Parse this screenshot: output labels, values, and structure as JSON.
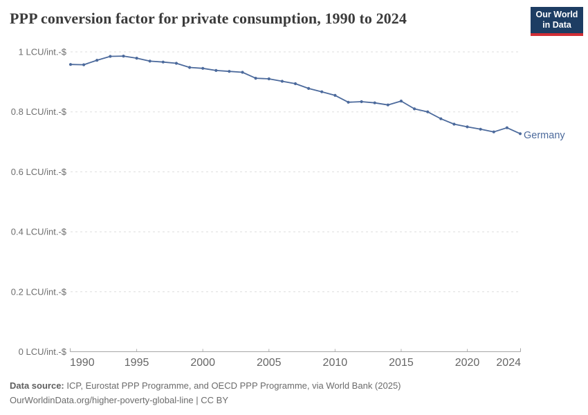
{
  "header": {
    "title": "PPP conversion factor for private consumption, 1990 to 2024"
  },
  "logo": {
    "line1": "Our World",
    "line2": "in Data",
    "bg_color": "#1d3d63",
    "stripe_color": "#d12e35"
  },
  "chart_data": {
    "type": "line",
    "title": "PPP conversion factor for private consumption, 1990 to 2024",
    "entity_label": "Germany",
    "line_color": "#4c6a9c",
    "grid": true,
    "legend_position": "end-of-line",
    "xlim": [
      1990,
      2024
    ],
    "ylim": [
      0,
      1
    ],
    "x": [
      1990,
      1991,
      1992,
      1993,
      1994,
      1995,
      1996,
      1997,
      1998,
      1999,
      2000,
      2001,
      2002,
      2003,
      2004,
      2005,
      2006,
      2007,
      2008,
      2009,
      2010,
      2011,
      2012,
      2013,
      2014,
      2015,
      2016,
      2017,
      2018,
      2019,
      2020,
      2021,
      2022,
      2023,
      2024
    ],
    "series": [
      {
        "name": "Germany",
        "values": [
          0.958,
          0.957,
          0.972,
          0.985,
          0.986,
          0.979,
          0.969,
          0.966,
          0.962,
          0.948,
          0.945,
          0.938,
          0.935,
          0.932,
          0.912,
          0.91,
          0.902,
          0.894,
          0.878,
          0.867,
          0.855,
          0.832,
          0.834,
          0.83,
          0.823,
          0.836,
          0.81,
          0.8,
          0.777,
          0.759,
          0.75,
          0.742,
          0.733,
          0.747,
          0.727
        ]
      }
    ],
    "yticks": [
      {
        "value": 0,
        "label": "0 LCU/int.-$"
      },
      {
        "value": 0.2,
        "label": "0.2 LCU/int.-$"
      },
      {
        "value": 0.4,
        "label": "0.4 LCU/int.-$"
      },
      {
        "value": 0.6,
        "label": "0.6 LCU/int.-$"
      },
      {
        "value": 0.8,
        "label": "0.8 LCU/int.-$"
      },
      {
        "value": 1,
        "label": "1 LCU/int.-$"
      }
    ],
    "xticks": [
      {
        "value": 1990,
        "label": "1990"
      },
      {
        "value": 1995,
        "label": "1995"
      },
      {
        "value": 2000,
        "label": "2000"
      },
      {
        "value": 2005,
        "label": "2005"
      },
      {
        "value": 2010,
        "label": "2010"
      },
      {
        "value": 2015,
        "label": "2015"
      },
      {
        "value": 2020,
        "label": "2020"
      },
      {
        "value": 2024,
        "label": "2024"
      }
    ]
  },
  "colors": {
    "grid": "#dedede",
    "axis": "#a5a5a5",
    "tick": "#b0b0b0",
    "y_label": "#6e6e6e",
    "x_label": "#666666",
    "title": "#3b3b3b",
    "footer": "#6b6b6b"
  },
  "footer": {
    "datasource_label": "Data source:",
    "datasource_text": "ICP, Eurostat PPP Programme, and OECD PPP Programme, via World Bank (2025)",
    "citation": "OurWorldinData.org/higher-poverty-global-line | CC BY"
  }
}
